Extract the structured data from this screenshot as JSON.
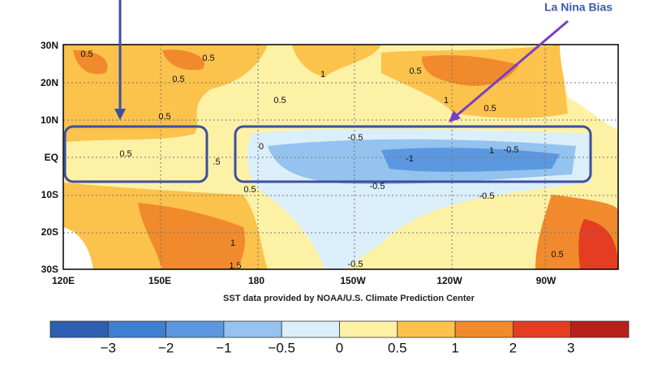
{
  "map": {
    "lat_labels": [
      "30N",
      "20N",
      "10N",
      "EQ",
      "10S",
      "20S",
      "30S"
    ],
    "lon_labels": [
      "120E",
      "150E",
      "180",
      "150W",
      "120W",
      "90W"
    ],
    "contour_labels": [
      "0.5",
      "0.5",
      "0.5",
      "1",
      "0.5",
      "0.5",
      "1",
      "0.5",
      "0.5",
      "-0.5",
      "-1",
      "1",
      "-0.5",
      "-0.5",
      "-0.5",
      "0.5",
      ".5",
      "0",
      "0.5",
      "1",
      "1.5",
      "-0.5",
      "0.5"
    ],
    "annotation": "La Nina Bias",
    "credit": "SST data provided by NOAA/U.S. Climate Prediction Center",
    "colorbar": {
      "colors": [
        "#2f5fb0",
        "#3f7fd0",
        "#5b98e0",
        "#93c3ee",
        "#dbeffa",
        "#fdf1a6",
        "#fbc24c",
        "#f08a2c",
        "#e53d22",
        "#b8201c"
      ],
      "labels": [
        "−3",
        "−2",
        "−1",
        "−0.5",
        "0",
        "0.5",
        "1",
        "2",
        "3"
      ]
    }
  }
}
